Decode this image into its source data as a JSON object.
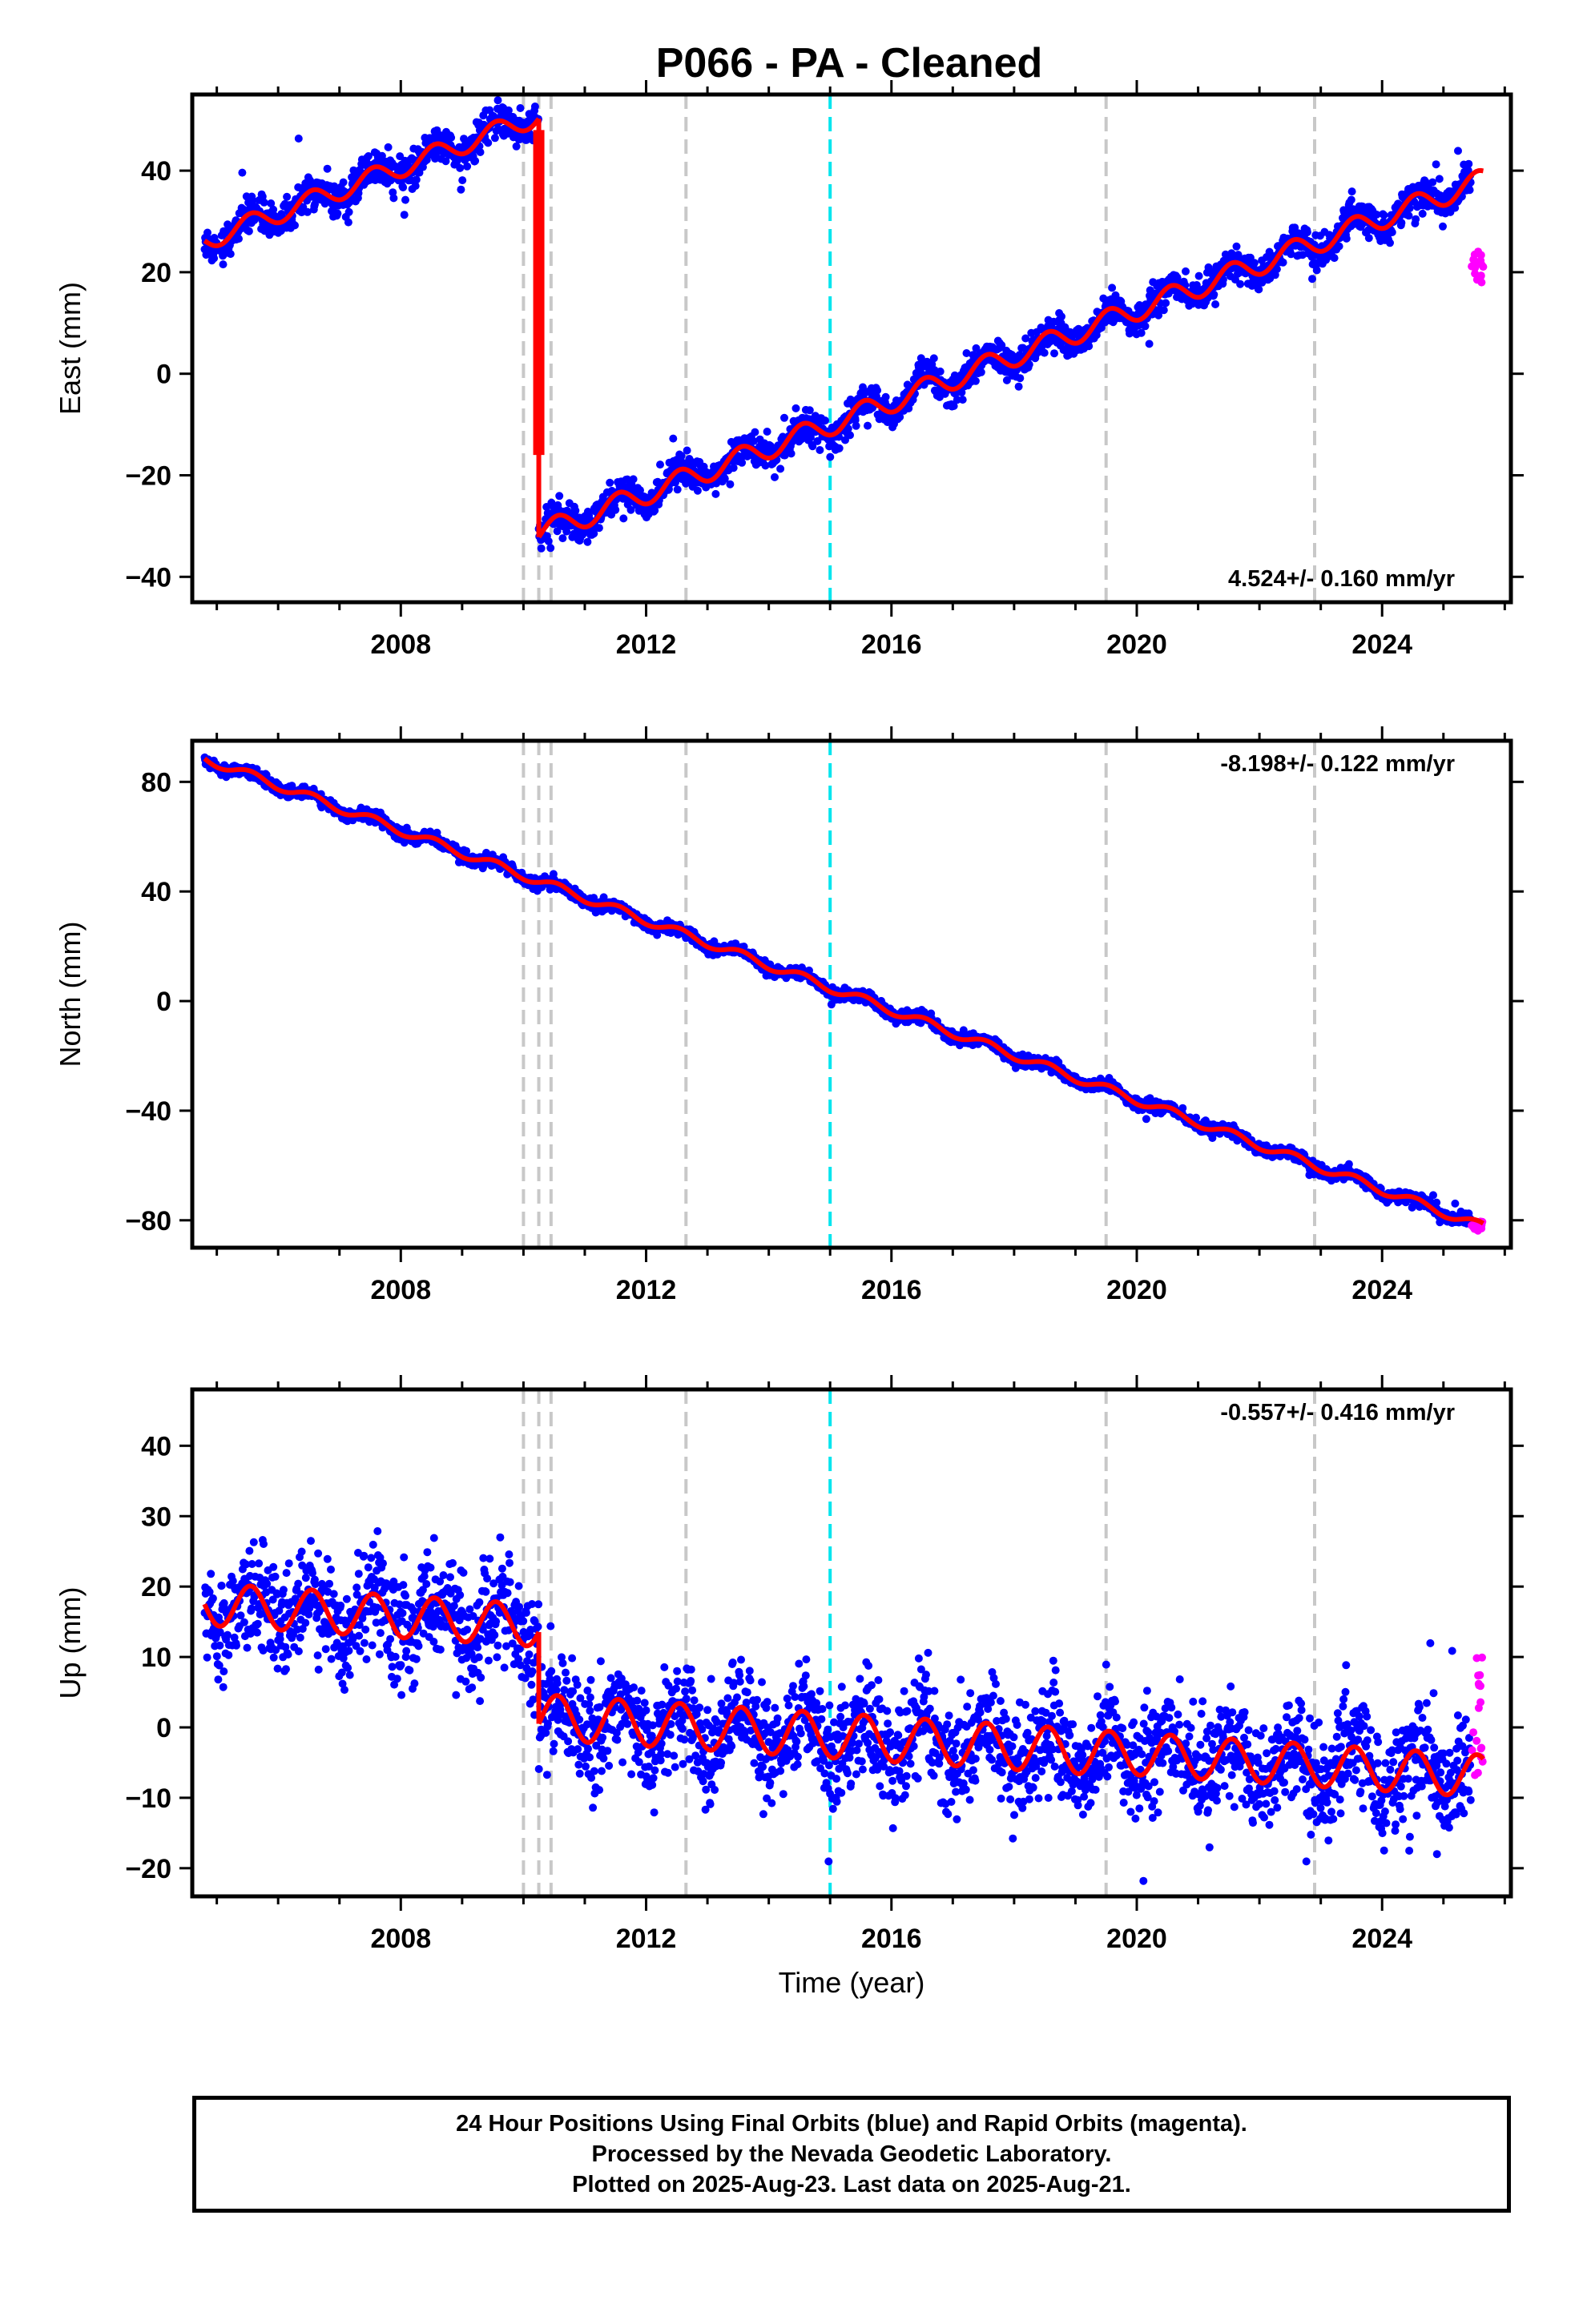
{
  "title": "P066  - PA - Cleaned",
  "chart_data": [
    {
      "type": "scatter",
      "ylabel": "East (mm)",
      "xlabel": "",
      "xlim": [
        2004.6,
        2026.1
      ],
      "ylim": [
        -45,
        55
      ],
      "xticks": [
        2008,
        2012,
        2016,
        2020,
        2024
      ],
      "yticks": [
        -40,
        -20,
        0,
        20,
        40
      ],
      "rate": "4.524+/- 0.160 mm/yr",
      "rate_position": "bottom-right",
      "trend_segments": [
        {
          "t0": 2004.8,
          "t1": 2010.25,
          "a": 26.2,
          "slope": 4.524,
          "amp": 2.0
        },
        {
          "t0": 2010.25,
          "t1": 2025.65,
          "a": -31.5,
          "slope": 4.524,
          "amp": 2.2
        }
      ],
      "offset_spike": {
        "t": 2010.25,
        "from": 48,
        "to": -16
      },
      "noise": 1.6,
      "rapid_points": {
        "t0": 2025.45,
        "t1": 2025.65,
        "center": 21,
        "spread": 3.2
      }
    },
    {
      "type": "scatter",
      "ylabel": "North (mm)",
      "xlabel": "",
      "xlim": [
        2004.6,
        2026.1
      ],
      "ylim": [
        -90,
        95
      ],
      "xticks": [
        2008,
        2012,
        2016,
        2020,
        2024
      ],
      "yticks": [
        -80,
        -40,
        0,
        40,
        80
      ],
      "rate": "-8.198+/- 0.122 mm/yr",
      "rate_position": "top-right",
      "trend_segments": [
        {
          "t0": 2004.8,
          "t1": 2025.65,
          "a": 88.5,
          "slope": -8.198,
          "amp": 1.6
        }
      ],
      "noise": 1.1,
      "rapid_points": {
        "t0": 2025.45,
        "t1": 2025.65,
        "center": -82,
        "spread": 2.0
      }
    },
    {
      "type": "scatter",
      "ylabel": "Up (mm)",
      "xlabel": "Time (year)",
      "xlim": [
        2004.6,
        2026.1
      ],
      "ylim": [
        -24,
        48
      ],
      "xticks": [
        2008,
        2012,
        2016,
        2020,
        2024
      ],
      "yticks": [
        -20,
        -10,
        0,
        10,
        20,
        30,
        40
      ],
      "rate": "-0.557+/- 0.416 mm/yr",
      "rate_position": "top-right",
      "trend_segments": [
        {
          "t0": 2004.8,
          "t1": 2010.25,
          "a": 17.5,
          "slope": -0.557,
          "amp": 3.0
        },
        {
          "t0": 2010.25,
          "t1": 2019.5,
          "a": 1.5,
          "slope": -0.557,
          "amp": 3.2
        },
        {
          "t0": 2019.5,
          "t1": 2025.65,
          "a": -3.5,
          "slope": -0.557,
          "amp": 3.0
        }
      ],
      "noise": 3.8,
      "rapid_points": {
        "t0": 2025.45,
        "t1": 2025.65,
        "center": 1.5,
        "spread": 9.0
      }
    }
  ],
  "event_lines": {
    "gray_dashed": [
      2010.0,
      2010.25,
      2010.45,
      2012.65,
      2019.5,
      2022.9
    ],
    "cyan_dashed": [
      2015.0
    ]
  },
  "colors": {
    "final_orbits": "#0000ff",
    "rapid_orbits": "#ff00ff",
    "model": "#ff0000",
    "event_line": "#c8c8c8",
    "antenna_change": "#00e5ee"
  },
  "footer": {
    "line1": "24 Hour Positions Using Final Orbits (blue) and Rapid Orbits (magenta).",
    "line2": "Processed by the Nevada Geodetic Laboratory.",
    "line3": "Plotted on 2025-Aug-23. Last data on 2025-Aug-21."
  }
}
